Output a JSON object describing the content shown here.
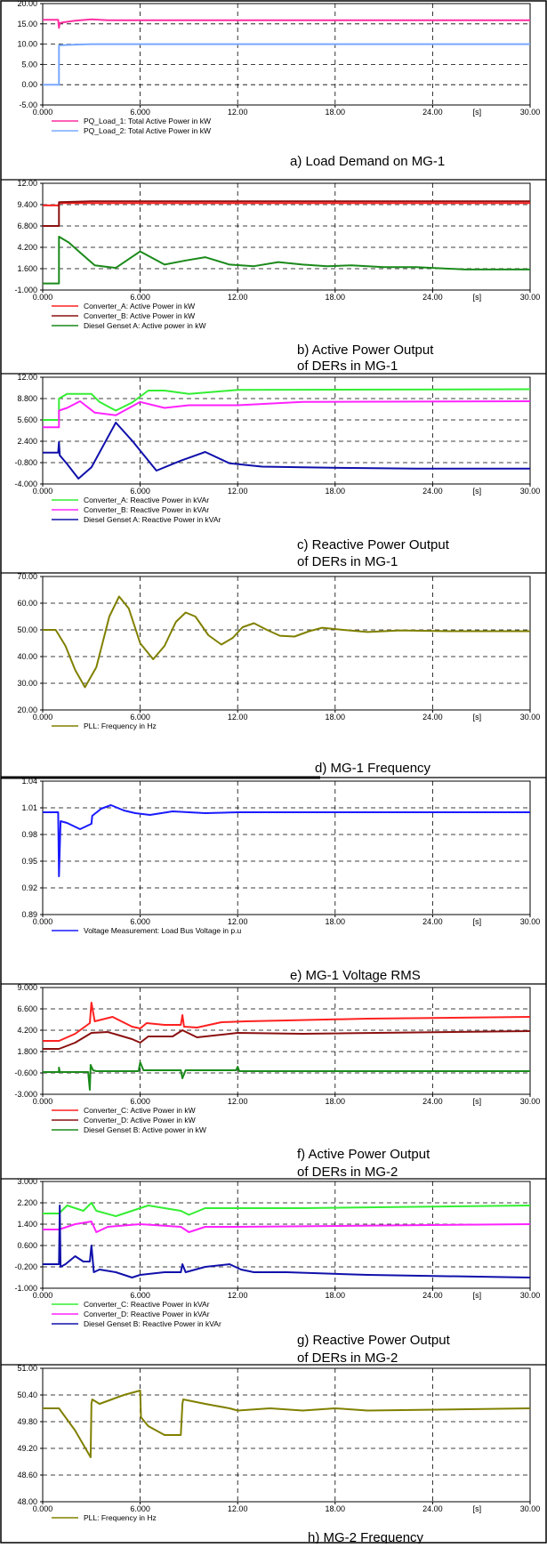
{
  "figure": {
    "panels": [
      {
        "caption": "a) Load Demand on MG-1",
        "y_ticks": [
          "20.00",
          "15.00",
          "10.00",
          "5.00",
          "0.00",
          "-5.00"
        ],
        "x_ticks": [
          "0.000",
          "6.000",
          "12.00",
          "18.00",
          "24.00",
          "30.00"
        ],
        "x_unit": "[s]",
        "legend": [
          "PQ_Load_1: Total Active Power in kW",
          "PQ_Load_2: Total Active Power in kW"
        ]
      },
      {
        "caption": "b) Active Power Output of DERs in MG-1",
        "y_ticks": [
          "12.00",
          "9.400",
          "6.800",
          "4.200",
          "1.600",
          "-1.000"
        ],
        "x_ticks": [
          "0.000",
          "6.000",
          "12.00",
          "18.00",
          "24.00",
          "30.00"
        ],
        "x_unit": "[s]",
        "legend": [
          "Converter_A: Active Power in kW",
          "Converter_B: Active Power in kW",
          "Diesel Genset A: Active power in kW"
        ]
      },
      {
        "caption": "c) Reactive Power Output of DERs in MG-1",
        "y_ticks": [
          "12.00",
          "8.800",
          "5.600",
          "2.400",
          "-0.800",
          "-4.000"
        ],
        "x_ticks": [
          "0.000",
          "6.000",
          "12.00",
          "18.00",
          "24.00",
          "30.00"
        ],
        "x_unit": "[s]",
        "legend": [
          "Converter_A: Reactive Power in kVAr",
          "Converter_B: Reactive Power in kVAr",
          "Diesel Genset A: Reactive Power in kVAr"
        ]
      },
      {
        "caption": "d) MG-1 Frequency",
        "y_ticks": [
          "70.00",
          "60.00",
          "50.00",
          "40.00",
          "30.00",
          "20.00"
        ],
        "x_ticks": [
          "0.000",
          "6.000",
          "12.00",
          "18.00",
          "24.00",
          "30.00"
        ],
        "x_unit": "[s]",
        "legend": [
          "PLL: Frequency in Hz"
        ]
      },
      {
        "caption": "e) MG-1 Voltage RMS",
        "y_ticks": [
          "1.04",
          "1.01",
          "0.98",
          "0.95",
          "0.92",
          "0.89"
        ],
        "x_ticks": [
          "0.000",
          "6.000",
          "12.00",
          "18.00",
          "24.00",
          "30.00"
        ],
        "x_unit": "[s]",
        "legend": [
          "Voltage Measurement: Load Bus Voltage in p.u"
        ]
      },
      {
        "caption": "f) Active Power Output of DERs in MG-2",
        "y_ticks": [
          "9.000",
          "6.600",
          "4.200",
          "1.800",
          "-0.600",
          "-3.000"
        ],
        "x_ticks": [
          "0.000",
          "6.000",
          "12.00",
          "18.00",
          "24.00",
          "30.00"
        ],
        "x_unit": "[s]",
        "legend": [
          "Converter_C: Active Power in kW",
          "Converter_D: Active Power in kW",
          "Diesel Genset B: Active power in kW"
        ]
      },
      {
        "caption": "g) Reactive Power Output of DERs in MG-2",
        "y_ticks": [
          "3.000",
          "2.200",
          "1.400",
          "0.600",
          "-0.200",
          "-1.000"
        ],
        "x_ticks": [
          "0.000",
          "6.000",
          "12.00",
          "18.00",
          "24.00",
          "30.00"
        ],
        "x_unit": "[s]",
        "legend": [
          "Converter_C: Reactive Power in kVAr",
          "Converter_D: Reactive Power in kVAr",
          "Diesel Genset B: Reactive Power in kVAr"
        ]
      },
      {
        "caption": "h) MG-2 Frequency",
        "y_ticks": [
          "51.00",
          "50.40",
          "49.80",
          "49.20",
          "48.60",
          "48.00"
        ],
        "x_ticks": [
          "0.000",
          "6.000",
          "12.00",
          "18.00",
          "24.00",
          "30.00"
        ],
        "x_unit": "[s]",
        "legend": [
          "PLL: Frequency in Hz"
        ]
      }
    ]
  },
  "chart_data": [
    {
      "type": "line",
      "title": "a) Load Demand on MG-1",
      "xlim": [
        0,
        30
      ],
      "ylim": [
        -5,
        20
      ],
      "grid": true,
      "legend_position": "bottom-left",
      "series": [
        {
          "name": "PQ_Load_1: Total Active Power in kW",
          "color": "#ff2fa0",
          "x": [
            0,
            0.95,
            1.0,
            1.05,
            1.3,
            2,
            3,
            4,
            30
          ],
          "y": [
            16.0,
            16.0,
            14.0,
            15.2,
            15.4,
            15.8,
            16.1,
            15.9,
            15.9
          ]
        },
        {
          "name": "PQ_Load_2: Total Active Power in kW",
          "color": "#78a8ff",
          "x": [
            0,
            1.0,
            1.0,
            1.5,
            3,
            30
          ],
          "y": [
            0,
            0,
            9.7,
            9.8,
            10.0,
            10.0
          ]
        }
      ]
    },
    {
      "type": "line",
      "title": "b) Active Power Output of DERs in MG-1",
      "xlim": [
        0,
        30
      ],
      "ylim": [
        -1,
        12
      ],
      "grid": true,
      "legend_position": "bottom-left",
      "series": [
        {
          "name": "Converter_A: Active Power in kW",
          "color": "#ff2020",
          "x": [
            0,
            1.0,
            1.0,
            30
          ],
          "y": [
            9.3,
            9.3,
            9.6,
            9.6
          ]
        },
        {
          "name": "Converter_B: Active Power in kW",
          "color": "#8b1010",
          "x": [
            0,
            1.0,
            1.0,
            3,
            30
          ],
          "y": [
            6.8,
            6.8,
            9.7,
            9.8,
            9.8
          ]
        },
        {
          "name": "Diesel Genset A: Active power in kW",
          "color": "#1a8a1a",
          "x": [
            0,
            1.0,
            1.0,
            1.6,
            2.4,
            3.2,
            4.5,
            6.0,
            7.5,
            8.8,
            10.0,
            11.5,
            13,
            14.5,
            16,
            17.5,
            19,
            21,
            23,
            26,
            30
          ],
          "y": [
            -0.2,
            -0.2,
            5.5,
            4.8,
            3.4,
            2.0,
            1.7,
            3.7,
            2.1,
            2.6,
            3.0,
            2.1,
            1.9,
            2.4,
            2.1,
            1.9,
            2.0,
            1.8,
            1.8,
            1.5,
            1.5
          ]
        }
      ]
    },
    {
      "type": "line",
      "title": "c) Reactive Power Output of DERs in MG-1",
      "xlim": [
        0,
        30
      ],
      "ylim": [
        -4,
        12
      ],
      "grid": true,
      "legend_position": "bottom-left",
      "series": [
        {
          "name": "Converter_A: Reactive Power in kVAr",
          "color": "#33ee33",
          "x": [
            0,
            1.0,
            1.0,
            1.5,
            3.0,
            3.5,
            4.5,
            5.5,
            6.5,
            7.5,
            9,
            12,
            30
          ],
          "y": [
            5.6,
            5.6,
            8.8,
            9.5,
            9.5,
            8.3,
            7.0,
            8.2,
            10.0,
            10.0,
            9.5,
            10.1,
            10.2
          ]
        },
        {
          "name": "Converter_B: Reactive Power in kVAr",
          "color": "#ff22ff",
          "x": [
            0,
            1.0,
            1.0,
            1.5,
            2.3,
            3.2,
            4.5,
            6.0,
            7.5,
            9.0,
            12,
            16,
            30
          ],
          "y": [
            4.5,
            4.5,
            7.0,
            7.4,
            8.4,
            6.7,
            6.3,
            8.3,
            7.4,
            7.8,
            7.8,
            8.3,
            8.4
          ]
        },
        {
          "name": "Diesel Genset A: Reactive Power in kVAr",
          "color": "#1010aa",
          "x": [
            0,
            0.95,
            1.0,
            1.05,
            1.5,
            2.2,
            3.0,
            4.5,
            5.5,
            7.0,
            8.5,
            10.0,
            11.5,
            13.5,
            16,
            19,
            23,
            30
          ],
          "y": [
            0.7,
            0.7,
            2.3,
            0.3,
            -1.0,
            -3.2,
            -1.5,
            5.2,
            2.5,
            -2.0,
            -0.5,
            0.8,
            -0.9,
            -1.4,
            -1.5,
            -1.6,
            -1.7,
            -1.7
          ]
        }
      ]
    },
    {
      "type": "line",
      "title": "d) MG-1 Frequency",
      "xlim": [
        0,
        30
      ],
      "ylim": [
        20,
        70
      ],
      "grid": true,
      "legend_position": "bottom-left",
      "series": [
        {
          "name": "PLL: Frequency in Hz",
          "color": "#808000",
          "x": [
            0,
            0.8,
            1.0,
            1.4,
            2.0,
            2.6,
            3.3,
            4.1,
            4.7,
            5.3,
            6.0,
            6.8,
            7.5,
            8.2,
            8.8,
            9.4,
            10.2,
            11.0,
            11.7,
            12.3,
            13.0,
            13.8,
            14.6,
            15.5,
            16.4,
            17.2,
            18.5,
            20,
            22,
            25,
            30
          ],
          "y": [
            50,
            50,
            48,
            44,
            35,
            28.5,
            36,
            55,
            62.5,
            58,
            45,
            39,
            44,
            53,
            56.5,
            55,
            48,
            44.5,
            47,
            51,
            52.5,
            50,
            47.8,
            47.5,
            49.5,
            50.8,
            50,
            49.2,
            49.8,
            49.5,
            49.5
          ]
        }
      ]
    },
    {
      "type": "line",
      "title": "e) MG-1 Voltage RMS",
      "xlim": [
        0,
        30
      ],
      "ylim": [
        0.89,
        1.04
      ],
      "grid": true,
      "legend_position": "bottom-left",
      "series": [
        {
          "name": "Voltage Measurement: Load Bus Voltage in p.u",
          "color": "#1a1aff",
          "x": [
            0,
            0.95,
            1.0,
            1.1,
            1.5,
            2.3,
            3.0,
            3.05,
            3.6,
            4.2,
            5.0,
            5.7,
            6.6,
            8,
            10,
            12,
            15,
            20,
            30
          ],
          "y": [
            1.005,
            1.005,
            0.933,
            0.995,
            0.993,
            0.986,
            0.992,
            1.001,
            1.009,
            1.013,
            1.007,
            1.004,
            1.002,
            1.006,
            1.004,
            1.005,
            1.005,
            1.005,
            1.005
          ]
        }
      ]
    },
    {
      "type": "line",
      "title": "f) Active Power Output of DERs in MG-2",
      "xlim": [
        0,
        30
      ],
      "ylim": [
        -3,
        9
      ],
      "grid": true,
      "legend_position": "bottom-left",
      "series": [
        {
          "name": "Converter_C: Active Power in kW",
          "color": "#ff2020",
          "x": [
            0,
            1.0,
            2.0,
            2.9,
            3.0,
            3.2,
            4.3,
            5.5,
            6.0,
            6.4,
            7.5,
            8.5,
            8.6,
            8.7,
            9.5,
            11,
            12.5,
            15,
            20,
            30
          ],
          "y": [
            3.0,
            3.0,
            3.8,
            5.0,
            7.3,
            5.2,
            5.7,
            4.6,
            4.4,
            5.0,
            4.8,
            4.8,
            5.9,
            4.6,
            4.5,
            5.1,
            5.2,
            5.3,
            5.5,
            5.7
          ]
        },
        {
          "name": "Converter_D: Active Power in kW",
          "color": "#8b1010",
          "x": [
            0,
            1.0,
            2.0,
            3.0,
            4.0,
            5.5,
            6.0,
            6.5,
            8.0,
            8.6,
            9.5,
            12.0,
            16.0,
            30
          ],
          "y": [
            2.1,
            2.1,
            2.8,
            3.9,
            4.0,
            3.2,
            2.8,
            3.5,
            3.5,
            4.2,
            3.4,
            3.9,
            3.8,
            4.1
          ]
        },
        {
          "name": "Diesel Genset B: Active power in kW",
          "color": "#1a8a1a",
          "x": [
            0,
            1.0,
            1.0,
            1.05,
            2.8,
            2.9,
            2.95,
            3.1,
            3.3,
            5.9,
            6.0,
            6.2,
            8.5,
            8.6,
            8.8,
            11.9,
            12.0,
            12.1,
            30
          ],
          "y": [
            -0.5,
            -0.5,
            0.0,
            -0.5,
            -0.5,
            -2.5,
            0.3,
            -0.3,
            -0.4,
            -0.4,
            0.6,
            -0.3,
            -0.3,
            -1.2,
            -0.3,
            -0.3,
            0.1,
            -0.4,
            -0.4
          ]
        }
      ]
    },
    {
      "type": "line",
      "title": "g) Reactive Power Output of DERs in MG-2",
      "xlim": [
        0,
        30
      ],
      "ylim": [
        -1,
        3
      ],
      "grid": true,
      "legend_position": "bottom-left",
      "series": [
        {
          "name": "Converter_C: Reactive Power in kVAr",
          "color": "#33ee33",
          "x": [
            0,
            1.0,
            1.5,
            2.5,
            3.0,
            3.3,
            4.5,
            6.5,
            8.5,
            9.0,
            10,
            12,
            16,
            30
          ],
          "y": [
            1.8,
            1.8,
            2.1,
            1.9,
            2.2,
            1.9,
            1.7,
            2.1,
            1.9,
            1.75,
            2.0,
            2.0,
            2.0,
            2.1
          ]
        },
        {
          "name": "Converter_D: Reactive Power in kVAr",
          "color": "#ff22ff",
          "x": [
            0,
            1.0,
            2.0,
            3.0,
            3.3,
            4.0,
            6.0,
            8.5,
            9.0,
            10.0,
            12.0,
            30
          ],
          "y": [
            1.2,
            1.2,
            1.4,
            1.5,
            1.1,
            1.3,
            1.4,
            1.3,
            1.1,
            1.3,
            1.3,
            1.4
          ]
        },
        {
          "name": "Diesel Genset B: Reactive Power in kVAr",
          "color": "#1010aa",
          "x": [
            0,
            1.0,
            1.05,
            1.1,
            1.4,
            2.0,
            2.5,
            2.9,
            3.0,
            3.15,
            3.5,
            4.5,
            5.5,
            6.0,
            7.5,
            8.5,
            8.6,
            8.8,
            10,
            11.5,
            12.2,
            13,
            15,
            20,
            30
          ],
          "y": [
            -0.1,
            -0.1,
            2.1,
            -0.2,
            -0.1,
            0.2,
            0.0,
            0.0,
            0.6,
            -0.4,
            -0.3,
            -0.4,
            -0.6,
            -0.5,
            -0.4,
            -0.4,
            -0.1,
            -0.4,
            -0.2,
            -0.1,
            -0.3,
            -0.4,
            -0.4,
            -0.5,
            -0.6
          ]
        }
      ]
    },
    {
      "type": "line",
      "title": "h) MG-2 Frequency",
      "xlim": [
        0,
        30
      ],
      "ylim": [
        48,
        51
      ],
      "grid": true,
      "legend_position": "bottom-left",
      "series": [
        {
          "name": "PLL: Frequency in Hz",
          "color": "#808000",
          "x": [
            0,
            1.0,
            2.0,
            2.95,
            3.0,
            3.05,
            3.5,
            5.0,
            6.0,
            6.05,
            6.5,
            7.5,
            8.5,
            8.6,
            8.65,
            10,
            11.5,
            12,
            14,
            16,
            18,
            20,
            30
          ],
          "y": [
            50.1,
            50.1,
            49.6,
            49.0,
            50.2,
            50.3,
            50.2,
            50.4,
            50.5,
            49.9,
            49.7,
            49.5,
            49.5,
            50.2,
            50.3,
            50.2,
            50.1,
            50.05,
            50.1,
            50.05,
            50.1,
            50.05,
            50.1
          ]
        }
      ]
    }
  ]
}
